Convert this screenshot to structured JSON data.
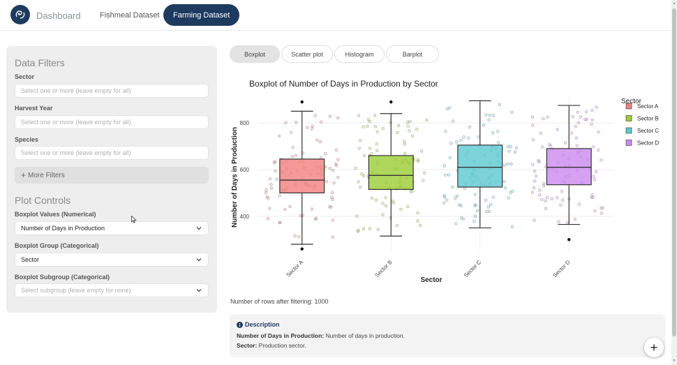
{
  "nav": {
    "dashboard": "Dashboard",
    "fishmeal": "Fishmeal Dataset",
    "farming": "Farming Dataset"
  },
  "sidebar": {
    "filters_heading": "Data Filters",
    "sector_label": "Sector",
    "sector_placeholder": "Select one or more (leave empty for all)",
    "harvest_year_label": "Harvest Year",
    "harvest_year_placeholder": "Select one or more (leave empty for all)",
    "species_label": "Species",
    "species_placeholder": "Select one or more (leave empty for all)",
    "more_filters": "More Filters",
    "plot_controls_heading": "Plot Controls",
    "values_label": "Boxplot Values (Numerical)",
    "values_selected": "Number of Days in Production",
    "group_label": "Boxplot Group (Categorical)",
    "group_selected": "Sector",
    "subgroup_label": "Boxplot Subgroup (Categorical)",
    "subgroup_placeholder": "Select subgroup (leave empty for none)"
  },
  "tabs": [
    "Boxplot",
    "Scatter plot",
    "Histogram",
    "Barplot"
  ],
  "colors": {
    "brand": "#1e3a5f",
    "sector_a": "#f08080",
    "sector_b": "#9acd32",
    "sector_c": "#5bc8d0",
    "sector_d": "#cc88f0"
  },
  "chart_data": {
    "type": "box",
    "title": "Boxplot of Number of Days in Production by Sector",
    "xlabel": "Sector",
    "ylabel": "Number of Days in Production",
    "legend_title": "Sector",
    "legend_position": "top-right",
    "categories": [
      "Sector A",
      "Sector B",
      "Sector C",
      "Sector D"
    ],
    "yticks": [
      400,
      600,
      800
    ],
    "ylim": [
      250,
      920
    ],
    "grid": true,
    "boxes": [
      {
        "name": "Sector A",
        "min": 280,
        "q1": 500,
        "median": 555,
        "q3": 645,
        "max": 850,
        "outliers": [
          890,
          260
        ]
      },
      {
        "name": "Sector B",
        "min": 315,
        "q1": 515,
        "median": 575,
        "q3": 660,
        "max": 840,
        "outliers": [
          890
        ]
      },
      {
        "name": "Sector C",
        "min": 350,
        "q1": 525,
        "median": 610,
        "q3": 705,
        "max": 895,
        "outliers": []
      },
      {
        "name": "Sector D",
        "min": 365,
        "q1": 535,
        "median": 610,
        "q3": 690,
        "max": 875,
        "outliers": [
          300
        ]
      }
    ]
  },
  "rows_count": "Number of rows after filtering: 1000",
  "description": {
    "title": "Description",
    "line1_label": "Number of Days in Production:",
    "line1_text": " Number of days in production.",
    "line2_label": "Sector:",
    "line2_text": " Production sector."
  },
  "fab_symbol": "+"
}
